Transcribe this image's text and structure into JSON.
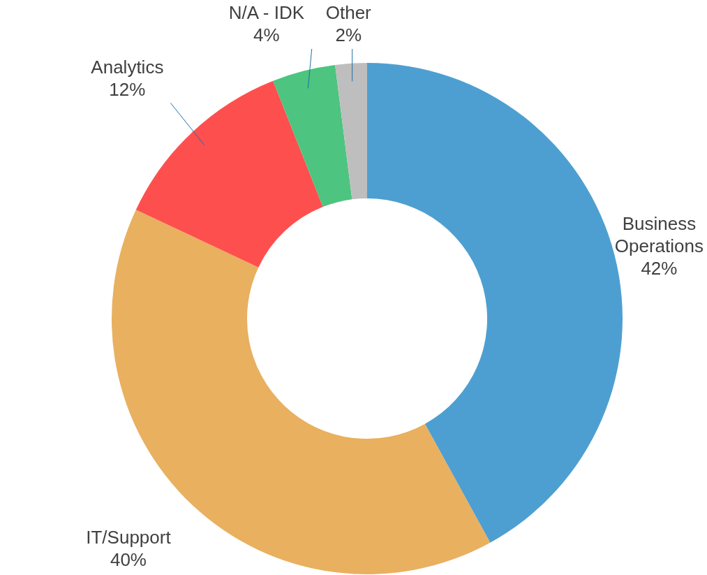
{
  "chart_data": {
    "type": "donut",
    "categories": [
      "Business Operations",
      "IT/Support",
      "Analytics",
      "N/A - IDK",
      "Other"
    ],
    "values": [
      42,
      40,
      12,
      4,
      2
    ],
    "value_labels": [
      "42%",
      "40%",
      "12%",
      "4%",
      "2%"
    ],
    "colors": [
      "#4e9fd1",
      "#e8b05f",
      "#fe4f4f",
      "#4dc47f",
      "#bebebe"
    ],
    "legend": false
  }
}
